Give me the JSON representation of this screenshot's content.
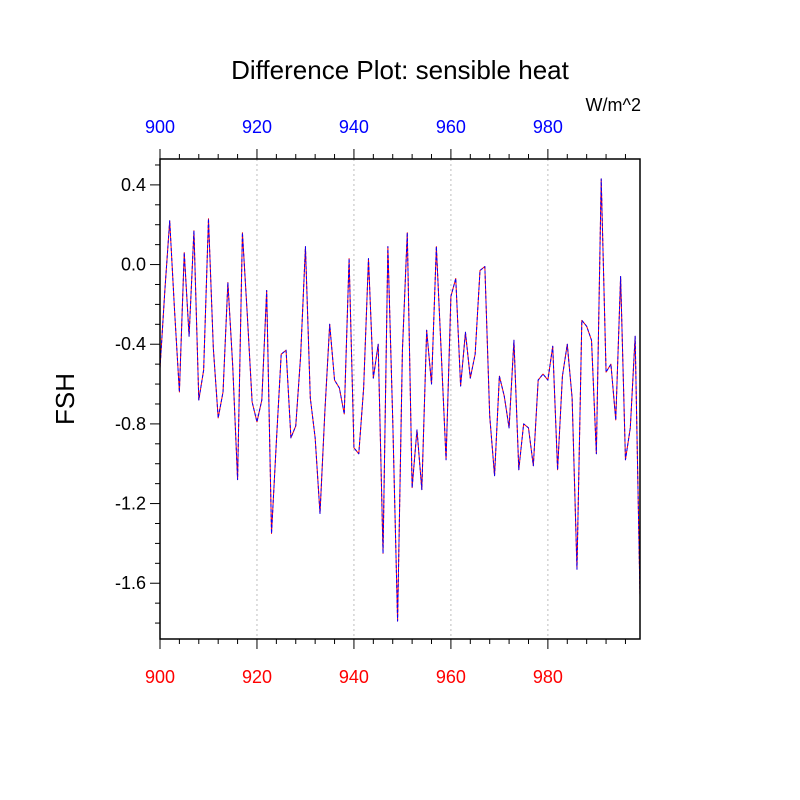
{
  "chart_data": {
    "type": "line",
    "title": "Difference Plot: sensible heat",
    "ylabel": "FSH",
    "units": "W/m^2",
    "xlim": [
      900,
      999
    ],
    "ylim": [
      -1.88,
      0.53
    ],
    "x_ticks": [
      900,
      920,
      940,
      960,
      980
    ],
    "x_tick_labels": [
      "900",
      "920",
      "940",
      "960",
      "980"
    ],
    "bottom_tick_color": "#ff0000",
    "top_tick_color": "#0000ff",
    "y_ticks": [
      0.4,
      0.0,
      -0.4,
      -0.8,
      -1.2,
      -1.6
    ],
    "y_tick_labels": [
      "0.4",
      "0.0",
      "-0.4",
      "-0.8",
      "-1.2",
      "-1.6"
    ],
    "grid": "vertical dotted at major x ticks",
    "series": [
      {
        "color": "#ff0000",
        "style": "solid"
      },
      {
        "color": "#0000ff",
        "style": "dashed"
      }
    ],
    "x": [
      900,
      901,
      902,
      903,
      904,
      905,
      906,
      907,
      908,
      909,
      910,
      911,
      912,
      913,
      914,
      915,
      916,
      917,
      918,
      919,
      920,
      921,
      922,
      923,
      924,
      925,
      926,
      927,
      928,
      929,
      930,
      931,
      932,
      933,
      934,
      935,
      936,
      937,
      938,
      939,
      940,
      941,
      942,
      943,
      944,
      945,
      946,
      947,
      948,
      949,
      950,
      951,
      952,
      953,
      954,
      955,
      956,
      957,
      958,
      959,
      960,
      961,
      962,
      963,
      964,
      965,
      966,
      967,
      968,
      969,
      970,
      971,
      972,
      973,
      974,
      975,
      976,
      977,
      978,
      979,
      980,
      981,
      982,
      983,
      984,
      985,
      986,
      987,
      988,
      989,
      990,
      991,
      992,
      993,
      994,
      995,
      996,
      997,
      998,
      999
    ],
    "values": [
      -0.52,
      -0.13,
      0.22,
      -0.23,
      -0.64,
      0.06,
      -0.36,
      0.17,
      -0.68,
      -0.53,
      0.23,
      -0.42,
      -0.77,
      -0.64,
      -0.09,
      -0.51,
      -1.08,
      0.16,
      -0.25,
      -0.69,
      -0.79,
      -0.68,
      -0.13,
      -1.35,
      -0.89,
      -0.45,
      -0.43,
      -0.87,
      -0.81,
      -0.46,
      0.09,
      -0.67,
      -0.87,
      -1.25,
      -0.74,
      -0.3,
      -0.58,
      -0.62,
      -0.75,
      0.03,
      -0.92,
      -0.95,
      -0.62,
      0.03,
      -0.57,
      -0.4,
      -1.45,
      0.09,
      -0.78,
      -1.79,
      -0.43,
      0.16,
      -1.12,
      -0.83,
      -1.13,
      -0.33,
      -0.6,
      0.09,
      -0.44,
      -0.98,
      -0.16,
      -0.07,
      -0.61,
      -0.34,
      -0.57,
      -0.45,
      -0.03,
      -0.01,
      -0.76,
      -1.06,
      -0.56,
      -0.66,
      -0.82,
      -0.38,
      -1.03,
      -0.8,
      -0.82,
      -1.01,
      -0.58,
      -0.55,
      -0.58,
      -0.41,
      -1.03,
      -0.56,
      -0.4,
      -0.67,
      -1.53,
      -0.28,
      -0.31,
      -0.38,
      -0.95,
      0.43,
      -0.54,
      -0.5,
      -0.78,
      -0.06,
      -0.98,
      -0.82,
      -0.36,
      -1.67
    ]
  }
}
